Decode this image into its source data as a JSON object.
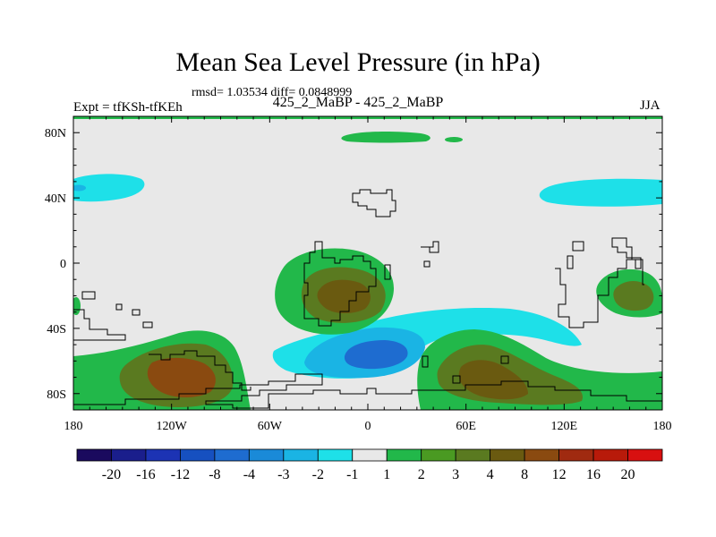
{
  "chart_data": {
    "type": "contour-map",
    "title": "Mean Sea Level Pressure (in hPa)",
    "stats_line": "rmsd= 1.03534 diff= 0.0848999",
    "rmsd": 1.03534,
    "diff": 0.0848999,
    "experiment": "Expt = tfKSh-tfKEh",
    "case_label": "425_2_MaBP - 425_2_MaBP",
    "season": "JJA",
    "x_axis": {
      "range": [
        -180,
        180
      ],
      "ticks": [
        -180,
        -120,
        -60,
        0,
        60,
        120,
        180
      ],
      "tick_labels": [
        "180",
        "120W",
        "60W",
        "0",
        "60E",
        "120E",
        "180"
      ]
    },
    "y_axis": {
      "range": [
        -90,
        90
      ],
      "ticks": [
        80,
        40,
        0,
        -40,
        -80
      ],
      "tick_labels": [
        "80N",
        "40N",
        "0",
        "40S",
        "80S"
      ]
    },
    "colorbar": {
      "levels": [
        "-20",
        "-16",
        "-12",
        "-8",
        "-4",
        "-3",
        "-2",
        "-1",
        "1",
        "2",
        "3",
        "4",
        "8",
        "12",
        "16",
        "20"
      ],
      "colors": [
        "#1a0a5e",
        "#1a1e8c",
        "#1c33b4",
        "#1650c0",
        "#1e6cd0",
        "#1a8ad8",
        "#1ab4e4",
        "#1ee0e8",
        "#e8e8e8",
        "#22b84a",
        "#4a9a22",
        "#5a7a20",
        "#6a5a10",
        "#8a4a10",
        "#a02a10",
        "#b81a0a",
        "#d81010"
      ]
    },
    "background_color": "#e8e8e8",
    "anomaly_regions": [
      {
        "name": "arctic-band",
        "sign": "positive",
        "center": [
          5,
          79
        ],
        "level": "1 to 2"
      },
      {
        "name": "nw-pacific",
        "sign": "negative",
        "center": [
          -165,
          44
        ],
        "level": "-1 to -2"
      },
      {
        "name": "ne-pacific",
        "sign": "negative",
        "center": [
          150,
          44
        ],
        "level": "-1 to -2"
      },
      {
        "name": "south-atlantic-high",
        "sign": "positive",
        "center": [
          -20,
          -15
        ],
        "level": "3 to 4"
      },
      {
        "name": "southern-ocean-low",
        "sign": "negative",
        "center": [
          0,
          -55
        ],
        "level": "-2 to -3"
      },
      {
        "name": "se-pacific-high",
        "sign": "positive",
        "center": [
          -115,
          -65
        ],
        "level": "4 to 8"
      },
      {
        "name": "indian-ocean-high",
        "sign": "positive",
        "center": [
          75,
          -70
        ],
        "level": "4 to 8"
      },
      {
        "name": "sw-pacific-high",
        "sign": "positive",
        "center": [
          170,
          -20
        ],
        "level": "3 to 4"
      }
    ]
  }
}
